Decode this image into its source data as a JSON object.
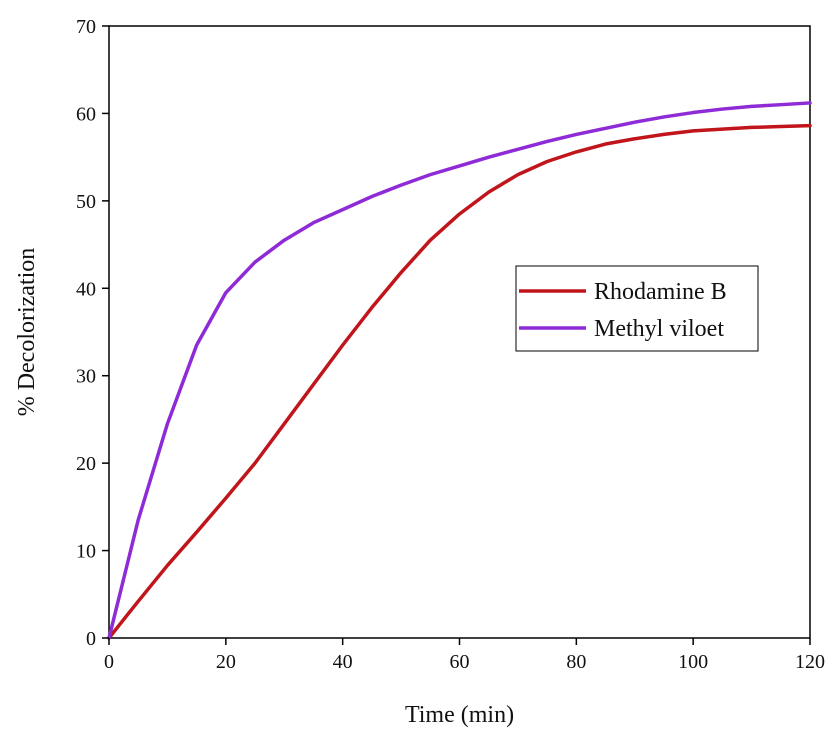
{
  "chart_data": {
    "type": "line",
    "title": "",
    "xlabel": "Time (min)",
    "ylabel": "% Decolorization",
    "xlim": [
      0,
      120
    ],
    "ylim": [
      0,
      70
    ],
    "xticks": [
      0,
      20,
      40,
      60,
      80,
      100,
      120
    ],
    "yticks": [
      0,
      10,
      20,
      30,
      40,
      50,
      60,
      70
    ],
    "grid": false,
    "legend_position": "center-right",
    "series": [
      {
        "name": "Rhodamine B",
        "color": "#c0161b",
        "x": [
          0,
          5,
          10,
          15,
          20,
          25,
          30,
          35,
          40,
          45,
          50,
          55,
          60,
          65,
          70,
          75,
          80,
          85,
          90,
          95,
          100,
          105,
          110,
          115,
          120
        ],
        "y": [
          0,
          4.2,
          8.3,
          12.1,
          16.0,
          20.0,
          24.5,
          29.0,
          33.5,
          37.8,
          41.8,
          45.5,
          48.5,
          51.0,
          53.0,
          54.5,
          55.6,
          56.5,
          57.1,
          57.6,
          58.0,
          58.2,
          58.4,
          58.5,
          58.6
        ]
      },
      {
        "name": "Methyl viloet",
        "color": "#8e2ad6",
        "x": [
          0,
          5,
          10,
          15,
          20,
          25,
          30,
          35,
          40,
          45,
          50,
          55,
          60,
          65,
          70,
          75,
          80,
          85,
          90,
          95,
          100,
          105,
          110,
          115,
          120
        ],
        "y": [
          0,
          13.5,
          24.5,
          33.5,
          39.5,
          43.0,
          45.5,
          47.5,
          49.0,
          50.5,
          51.8,
          53.0,
          54.0,
          55.0,
          55.9,
          56.8,
          57.6,
          58.3,
          59.0,
          59.6,
          60.1,
          60.5,
          60.8,
          61.0,
          61.2
        ]
      }
    ]
  }
}
